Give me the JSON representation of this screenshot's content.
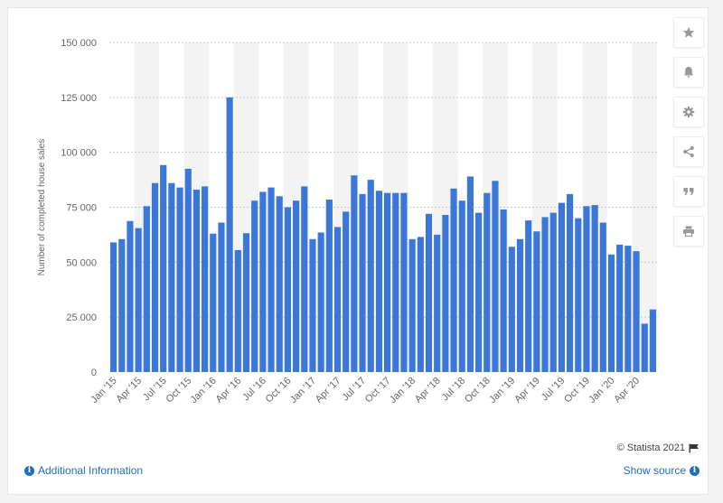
{
  "chart_data": {
    "type": "bar",
    "ylabel": "Number of completed house sales",
    "ylim": [
      0,
      150000
    ],
    "yticks": [
      0,
      25000,
      50000,
      75000,
      100000,
      125000,
      150000
    ],
    "ytick_labels": [
      "0",
      "25 000",
      "50 000",
      "75 000",
      "100 000",
      "125 000",
      "150 000"
    ],
    "categories": [
      "Jan '15",
      "Feb '15",
      "Mar '15",
      "Apr '15",
      "May '15",
      "Jun '15",
      "Jul '15",
      "Aug '15",
      "Sep '15",
      "Oct '15",
      "Nov '15",
      "Dec '15",
      "Jan '16",
      "Feb '16",
      "Mar '16",
      "Apr '16",
      "May '16",
      "Jun '16",
      "Jul '16",
      "Aug '16",
      "Sep '16",
      "Oct '16",
      "Nov '16",
      "Dec '16",
      "Jan '17",
      "Feb '17",
      "Mar '17",
      "Apr '17",
      "May '17",
      "Jun '17",
      "Jul '17",
      "Aug '17",
      "Sep '17",
      "Oct '17",
      "Nov '17",
      "Dec '17",
      "Jan '18",
      "Feb '18",
      "Mar '18",
      "Apr '18",
      "May '18",
      "Jun '18",
      "Jul '18",
      "Aug '18",
      "Sep '18",
      "Oct '18",
      "Nov '18",
      "Dec '18",
      "Jan '19",
      "Feb '19",
      "Mar '19",
      "Apr '19",
      "May '19",
      "Jun '19",
      "Jul '19",
      "Aug '19",
      "Sep '19",
      "Oct '19",
      "Nov '19",
      "Dec '19",
      "Jan '20",
      "Feb '20",
      "Mar '20",
      "Apr '20",
      "May '20",
      "Jun '20"
    ],
    "xtick_labels": [
      "Jan '15",
      "Apr '15",
      "Jul '15",
      "Oct '15",
      "Jan '16",
      "Apr '16",
      "Jul '16",
      "Oct '16",
      "Jan '17",
      "Apr '17",
      "Jul '17",
      "Oct '17",
      "Jan '18",
      "Apr '18",
      "Jul '18",
      "Oct '18",
      "Jan '19",
      "Apr '19",
      "Jul '19",
      "Oct '19",
      "Jan '20",
      "Apr '20"
    ],
    "values": [
      59000,
      60500,
      68700,
      65500,
      75500,
      86000,
      94200,
      86000,
      84000,
      92500,
      83000,
      84500,
      63000,
      68000,
      125000,
      55500,
      63200,
      78000,
      82000,
      84000,
      80000,
      75000,
      78000,
      84500,
      60500,
      63500,
      78500,
      66000,
      73000,
      89500,
      81000,
      87500,
      82500,
      81500,
      81500,
      81500,
      60500,
      61500,
      72000,
      62500,
      71500,
      83500,
      78000,
      89000,
      72500,
      81500,
      87000,
      74000,
      57000,
      60500,
      69000,
      64000,
      70500,
      72500,
      77000,
      81000,
      70000,
      75500,
      76000,
      68000,
      53500,
      58000,
      57500,
      55000,
      22000,
      28500
    ],
    "bar_color": "#3a77d8",
    "grid": true
  },
  "sidebar": {
    "icons": [
      "star-icon",
      "bell-icon",
      "gear-icon",
      "share-icon",
      "quote-icon",
      "print-icon"
    ]
  },
  "footer": {
    "additional_info": "Additional Information",
    "show_source": "Show source",
    "credit": "© Statista 2021"
  }
}
